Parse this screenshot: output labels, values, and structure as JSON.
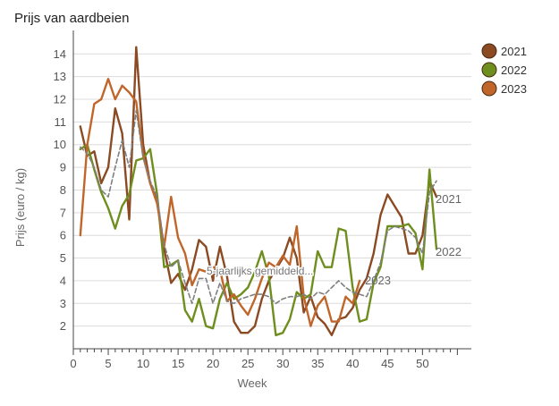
{
  "title": "Prijs van aardbeien",
  "chart_data": {
    "type": "line",
    "xlabel": "Week",
    "ylabel": "Prijs (euro / kg)",
    "xlim": [
      0,
      57
    ],
    "ylim": [
      1,
      14.8
    ],
    "x_ticks": [
      0,
      5,
      10,
      15,
      20,
      25,
      30,
      35,
      40,
      45,
      50
    ],
    "y_ticks": [
      2,
      3,
      4,
      5,
      6,
      7,
      8,
      9,
      10,
      11,
      12,
      13,
      14
    ],
    "grid": "horizontal",
    "legend_position": "top-right",
    "series": [
      {
        "name": "2021",
        "color": "#8B4A22",
        "end_label": "2021",
        "x": [
          1,
          2,
          3,
          4,
          5,
          6,
          7,
          8,
          9,
          10,
          11,
          12,
          13,
          14,
          15,
          16,
          17,
          18,
          19,
          20,
          21,
          22,
          23,
          24,
          25,
          26,
          27,
          28,
          29,
          30,
          31,
          32,
          33,
          34,
          35,
          36,
          37,
          38,
          39,
          40,
          41,
          42,
          43,
          44,
          45,
          46,
          47,
          48,
          49,
          50,
          51,
          52
        ],
        "y": [
          10.8,
          9.5,
          9.7,
          8.3,
          9.0,
          11.6,
          10.5,
          6.7,
          14.3,
          10.0,
          8.3,
          7.5,
          5.4,
          3.9,
          4.3,
          3.6,
          4.5,
          5.8,
          5.5,
          4.0,
          5.5,
          4.2,
          2.2,
          1.7,
          1.7,
          2.0,
          3.2,
          4.0,
          4.5,
          5.0,
          5.9,
          5.0,
          2.6,
          3.3,
          2.4,
          2.1,
          1.6,
          2.3,
          2.4,
          2.8,
          3.6,
          4.1,
          5.2,
          6.9,
          7.8,
          7.3,
          6.8,
          5.2,
          5.2,
          6.0,
          8.4,
          7.7
        ]
      },
      {
        "name": "2022",
        "color": "#6E8E1E",
        "end_label": "2022",
        "x": [
          1,
          2,
          3,
          4,
          5,
          6,
          7,
          8,
          9,
          10,
          11,
          12,
          13,
          14,
          15,
          16,
          17,
          18,
          19,
          20,
          21,
          22,
          23,
          24,
          25,
          26,
          27,
          28,
          29,
          30,
          31,
          32,
          33,
          34,
          35,
          36,
          37,
          38,
          39,
          40,
          41,
          42,
          43,
          44,
          45,
          46,
          47,
          48,
          49,
          50,
          51,
          52
        ],
        "y": [
          9.8,
          10.0,
          8.9,
          7.9,
          7.2,
          6.3,
          7.3,
          7.8,
          9.3,
          9.4,
          9.8,
          7.8,
          4.6,
          4.7,
          4.9,
          2.7,
          2.2,
          3.2,
          2.0,
          1.9,
          3.2,
          3.9,
          3.2,
          3.4,
          3.7,
          4.4,
          5.3,
          4.2,
          1.6,
          1.7,
          2.3,
          3.5,
          3.2,
          3.4,
          5.3,
          4.6,
          4.6,
          6.3,
          6.2,
          3.7,
          2.2,
          2.3,
          3.9,
          4.6,
          6.4,
          6.4,
          6.4,
          6.5,
          6.1,
          4.5,
          8.9,
          5.4
        ]
      },
      {
        "name": "2023",
        "color": "#C0662A",
        "end_label": "2023",
        "x": [
          1,
          2,
          3,
          4,
          5,
          6,
          7,
          8,
          9,
          10,
          11,
          12,
          13,
          14,
          15,
          16,
          17,
          18,
          19,
          20,
          21,
          22,
          23,
          24,
          25,
          26,
          27,
          28,
          29,
          30,
          31,
          32,
          33,
          34,
          35,
          36,
          37,
          38,
          39,
          40,
          41
        ],
        "y": [
          6.0,
          10.0,
          11.8,
          12.0,
          12.9,
          12.0,
          12.6,
          12.3,
          11.9,
          9.5,
          8.3,
          7.4,
          5.5,
          7.7,
          5.9,
          5.2,
          3.8,
          4.5,
          4.4,
          4.6,
          4.5,
          3.1,
          3.4,
          2.9,
          2.5,
          3.2,
          4.1,
          4.8,
          4.6,
          5.1,
          4.7,
          6.4,
          3.3,
          2.0,
          2.9,
          3.3,
          2.2,
          2.2,
          3.3,
          3.0,
          4.0
        ]
      },
      {
        "name": "5-jaarlijks gemiddeld",
        "color": "#808080",
        "dashed": true,
        "label": "5-jaarlijks gemiddeld...",
        "x": [
          1,
          2,
          3,
          4,
          5,
          6,
          7,
          8,
          9,
          10,
          11,
          12,
          13,
          14,
          15,
          16,
          17,
          18,
          19,
          20,
          21,
          22,
          23,
          24,
          25,
          26,
          27,
          28,
          29,
          30,
          31,
          32,
          33,
          34,
          35,
          36,
          37,
          38,
          39,
          40,
          41,
          42,
          43,
          44,
          45,
          46,
          47,
          48,
          49,
          50,
          51,
          52
        ],
        "y": [
          9.9,
          9.6,
          9.0,
          8.0,
          7.7,
          9.0,
          10.2,
          9.0,
          11.5,
          9.4,
          8.4,
          7.7,
          5.6,
          4.6,
          4.9,
          3.9,
          3.0,
          4.1,
          4.1,
          3.0,
          3.9,
          3.1,
          3.0,
          3.2,
          3.3,
          3.4,
          3.4,
          3.3,
          3.0,
          3.2,
          3.3,
          3.3,
          3.4,
          3.2,
          3.5,
          3.4,
          3.7,
          4.0,
          3.7,
          3.5,
          3.4,
          3.3,
          4.0,
          4.8,
          6.2,
          6.4,
          6.3,
          6.2,
          5.9,
          5.2,
          7.9,
          8.4
        ]
      }
    ]
  }
}
